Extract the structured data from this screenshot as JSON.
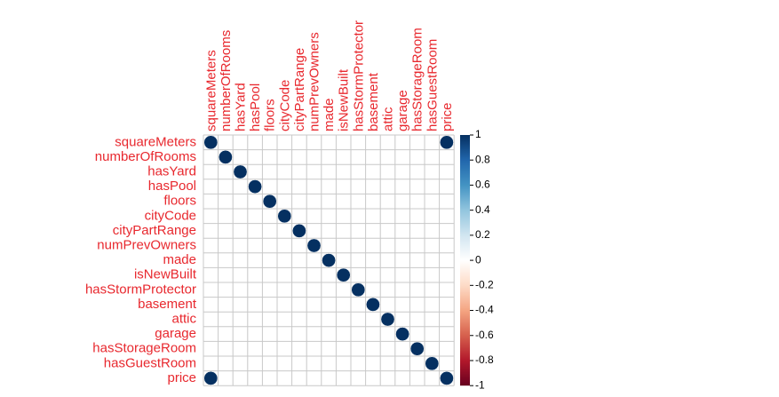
{
  "chart_data": {
    "type": "heatmap",
    "variables": [
      "squareMeters",
      "numberOfRooms",
      "hasYard",
      "hasPool",
      "floors",
      "cityCode",
      "cityPartRange",
      "numPrevOwners",
      "made",
      "isNewBuilt",
      "hasStormProtector",
      "basement",
      "attic",
      "garage",
      "hasStorageRoom",
      "hasGuestRoom",
      "price"
    ],
    "matrix": [
      [
        1,
        0,
        0,
        0,
        0,
        0,
        0,
        0,
        0,
        0,
        0,
        0,
        0,
        0,
        0,
        0,
        1
      ],
      [
        0,
        1,
        0,
        0,
        0,
        0,
        0,
        0,
        0,
        0,
        0,
        0,
        0,
        0,
        0,
        0,
        0
      ],
      [
        0,
        0,
        1,
        0,
        0,
        0,
        0,
        0,
        0,
        0,
        0,
        0,
        0,
        0,
        0,
        0,
        0
      ],
      [
        0,
        0,
        0,
        1,
        0,
        0,
        0,
        0,
        0,
        0,
        0,
        0,
        0,
        0,
        0,
        0,
        0
      ],
      [
        0,
        0,
        0,
        0,
        1,
        0,
        0,
        0,
        0,
        0,
        0,
        0,
        0,
        0,
        0,
        0,
        0
      ],
      [
        0,
        0,
        0,
        0,
        0,
        1,
        0,
        0,
        0,
        0,
        0,
        0,
        0,
        0,
        0,
        0,
        0
      ],
      [
        0,
        0,
        0,
        0,
        0,
        0,
        1,
        0,
        0,
        0,
        0,
        0,
        0,
        0,
        0,
        0,
        0
      ],
      [
        0,
        0,
        0,
        0,
        0,
        0,
        0,
        1,
        0,
        0,
        0,
        0,
        0,
        0,
        0,
        0,
        0
      ],
      [
        0,
        0,
        0,
        0,
        0,
        0,
        0,
        0,
        1,
        0,
        0,
        0,
        0,
        0,
        0,
        0,
        0
      ],
      [
        0,
        0,
        0,
        0,
        0,
        0,
        0,
        0,
        0,
        1,
        0,
        0,
        0,
        0,
        0,
        0,
        0
      ],
      [
        0,
        0,
        0,
        0,
        0,
        0,
        0,
        0,
        0,
        0,
        1,
        0,
        0,
        0,
        0,
        0,
        0
      ],
      [
        0,
        0,
        0,
        0,
        0,
        0,
        0,
        0,
        0,
        0,
        0,
        1,
        0,
        0,
        0,
        0,
        0
      ],
      [
        0,
        0,
        0,
        0,
        0,
        0,
        0,
        0,
        0,
        0,
        0,
        0,
        1,
        0,
        0,
        0,
        0
      ],
      [
        0,
        0,
        0,
        0,
        0,
        0,
        0,
        0,
        0,
        0,
        0,
        0,
        0,
        1,
        0,
        0,
        0
      ],
      [
        0,
        0,
        0,
        0,
        0,
        0,
        0,
        0,
        0,
        0,
        0,
        0,
        0,
        0,
        1,
        0,
        0
      ],
      [
        0,
        0,
        0,
        0,
        0,
        0,
        0,
        0,
        0,
        0,
        0,
        0,
        0,
        0,
        0,
        1,
        0
      ],
      [
        1,
        0,
        0,
        0,
        0,
        0,
        0,
        0,
        0,
        0,
        0,
        0,
        0,
        0,
        0,
        0,
        1
      ]
    ],
    "color_scale": {
      "range": [
        -1,
        1
      ],
      "ticks": [
        "1",
        "0.8",
        "0.6",
        "0.4",
        "0.2",
        "0",
        "-0.2",
        "-0.4",
        "-0.6",
        "-0.8",
        "-1"
      ],
      "colors": [
        "#67001f",
        "#b2182b",
        "#d6604d",
        "#f4a582",
        "#fddbc7",
        "#ffffff",
        "#d1e5f0",
        "#92c5de",
        "#4393c3",
        "#2166ac",
        "#053061"
      ]
    },
    "label_color": "#e8282e",
    "grid": true,
    "legend": "right"
  }
}
